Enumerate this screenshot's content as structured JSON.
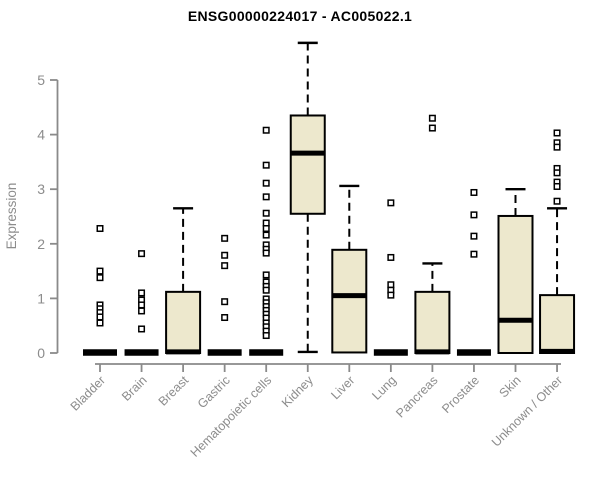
{
  "chart_data": {
    "type": "boxplot",
    "title": "ENSG00000224017 - AC005022.1",
    "ylabel": "Expression",
    "ylim": [
      0,
      5.8
    ],
    "yticks": [
      0,
      1,
      2,
      3,
      4,
      5
    ],
    "grid": false,
    "legend": "none",
    "colors": {
      "box_fill": "#EDE8CD",
      "box_stroke": "#000000",
      "median": "#000000",
      "whisker": "#000000",
      "outlier_stroke": "#000000",
      "outlier_fill": "#ffffff",
      "axis": "#8a8a8a",
      "tick_label": "#8c8c8c",
      "title": "#000000",
      "background": "#ffffff"
    },
    "categories": [
      "Bladder",
      "Brain",
      "Breast",
      "Gastric",
      "Hematopoietic cells",
      "Kidney",
      "Liver",
      "Lung",
      "Pancreas",
      "Prostate",
      "Skin",
      "Unknown / Other"
    ],
    "series": [
      {
        "name": "Bladder",
        "low": 0,
        "q1": 0,
        "median": 0.01,
        "q3": 0.03,
        "high": 0.03,
        "outliers": [
          2.28,
          1.5,
          1.38,
          0.88,
          0.81,
          0.74,
          0.66,
          0.55
        ]
      },
      {
        "name": "Brain",
        "low": 0,
        "q1": 0,
        "median": 0.01,
        "q3": 0.03,
        "high": 0.03,
        "outliers": [
          1.82,
          1.1,
          0.97,
          0.88,
          0.77,
          0.44
        ]
      },
      {
        "name": "Breast",
        "low": 0,
        "q1": 0,
        "median": 0.02,
        "q3": 1.12,
        "high": 2.65,
        "outliers": []
      },
      {
        "name": "Gastric",
        "low": 0,
        "q1": 0,
        "median": 0.01,
        "q3": 0.03,
        "high": 0.03,
        "outliers": [
          2.1,
          1.79,
          1.6,
          0.94,
          0.65
        ]
      },
      {
        "name": "Hematopoietic cells",
        "low": 0,
        "q1": 0,
        "median": 0.01,
        "q3": 0.03,
        "high": 0.03,
        "outliers": [
          4.08,
          3.44,
          3.11,
          2.86,
          2.56,
          2.38,
          2.28,
          2.16,
          1.98,
          1.9,
          1.83,
          1.43,
          1.3,
          1.22,
          1.15,
          0.99,
          0.92,
          0.85,
          0.78,
          0.71,
          0.64,
          0.55,
          0.48,
          0.4,
          0.32
        ]
      },
      {
        "name": "Kidney",
        "low": 0.02,
        "q1": 2.55,
        "median": 3.66,
        "q3": 4.35,
        "high": 5.68,
        "outliers": []
      },
      {
        "name": "Liver",
        "low": 0,
        "q1": 0.01,
        "median": 1.05,
        "q3": 1.89,
        "high": 3.06,
        "outliers": []
      },
      {
        "name": "Lung",
        "low": 0,
        "q1": 0,
        "median": 0.01,
        "q3": 0.03,
        "high": 0.03,
        "outliers": [
          2.75,
          1.75,
          1.25,
          1.15,
          1.06
        ]
      },
      {
        "name": "Pancreas",
        "low": 0,
        "q1": 0,
        "median": 0.02,
        "q3": 1.12,
        "high": 1.64,
        "outliers": [
          4.3,
          4.12
        ]
      },
      {
        "name": "Prostate",
        "low": 0,
        "q1": 0,
        "median": 0.01,
        "q3": 0.03,
        "high": 0.03,
        "outliers": [
          2.94,
          2.53,
          2.14,
          1.81
        ]
      },
      {
        "name": "Skin",
        "low": 0,
        "q1": 0,
        "median": 0.6,
        "q3": 2.51,
        "high": 3.0,
        "outliers": []
      },
      {
        "name": "Unknown / Other",
        "low": 0,
        "q1": 0,
        "median": 0.03,
        "q3": 1.06,
        "high": 2.65,
        "outliers": [
          4.03,
          3.85,
          3.77,
          3.38,
          3.3,
          3.13,
          3.05,
          2.78
        ]
      }
    ]
  }
}
